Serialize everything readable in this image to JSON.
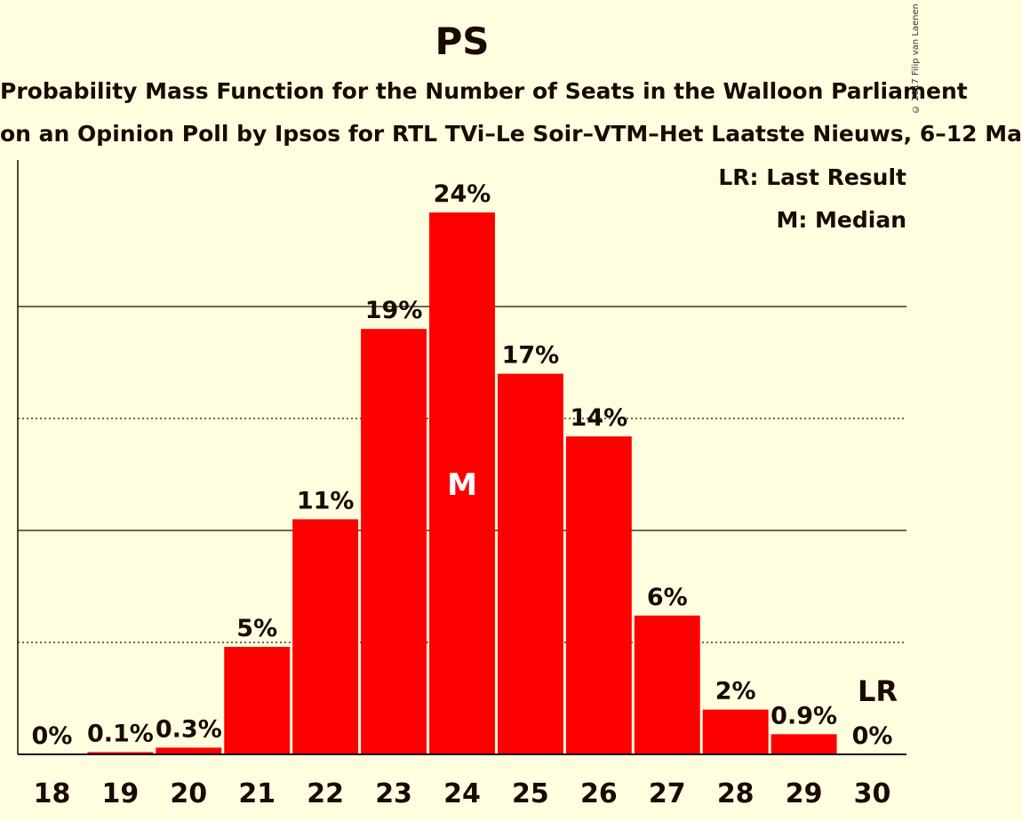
{
  "title": "PS",
  "subtitle": "Probability Mass Function for the Number of Seats in the Walloon Parliament",
  "subtitle2": "on an Opinion Poll by Ipsos for RTL TVi–Le Soir–VTM–Het Laatste Nieuws, 6–12 Ma",
  "copyright": "© 2017 Filip van Laenen",
  "legend": {
    "lr": "LR: Last Result",
    "median": "M: Median"
  },
  "colors": {
    "background": "#FFFFE0",
    "bar": "#FF0000",
    "text": "#1A0A00"
  },
  "chart_data": {
    "type": "bar",
    "categories": [
      "18",
      "19",
      "20",
      "21",
      "22",
      "23",
      "24",
      "25",
      "26",
      "27",
      "28",
      "29",
      "30"
    ],
    "values": [
      0,
      0.1,
      0.3,
      4.8,
      10.5,
      19,
      24.2,
      17,
      14.2,
      6.2,
      2,
      0.9,
      0
    ],
    "value_labels": [
      "0%",
      "0.1%",
      "0.3%",
      "5%",
      "11%",
      "19%",
      "24%",
      "17%",
      "14%",
      "6%",
      "2%",
      "0.9%",
      "0%"
    ],
    "ylim": [
      0,
      25
    ],
    "grid": {
      "solid": [
        10,
        20
      ],
      "dotted": [
        5,
        15
      ]
    },
    "median_category": "24",
    "median_label": "M",
    "last_result_category": "30",
    "last_result_label": "LR",
    "legend_position": "top-right"
  }
}
